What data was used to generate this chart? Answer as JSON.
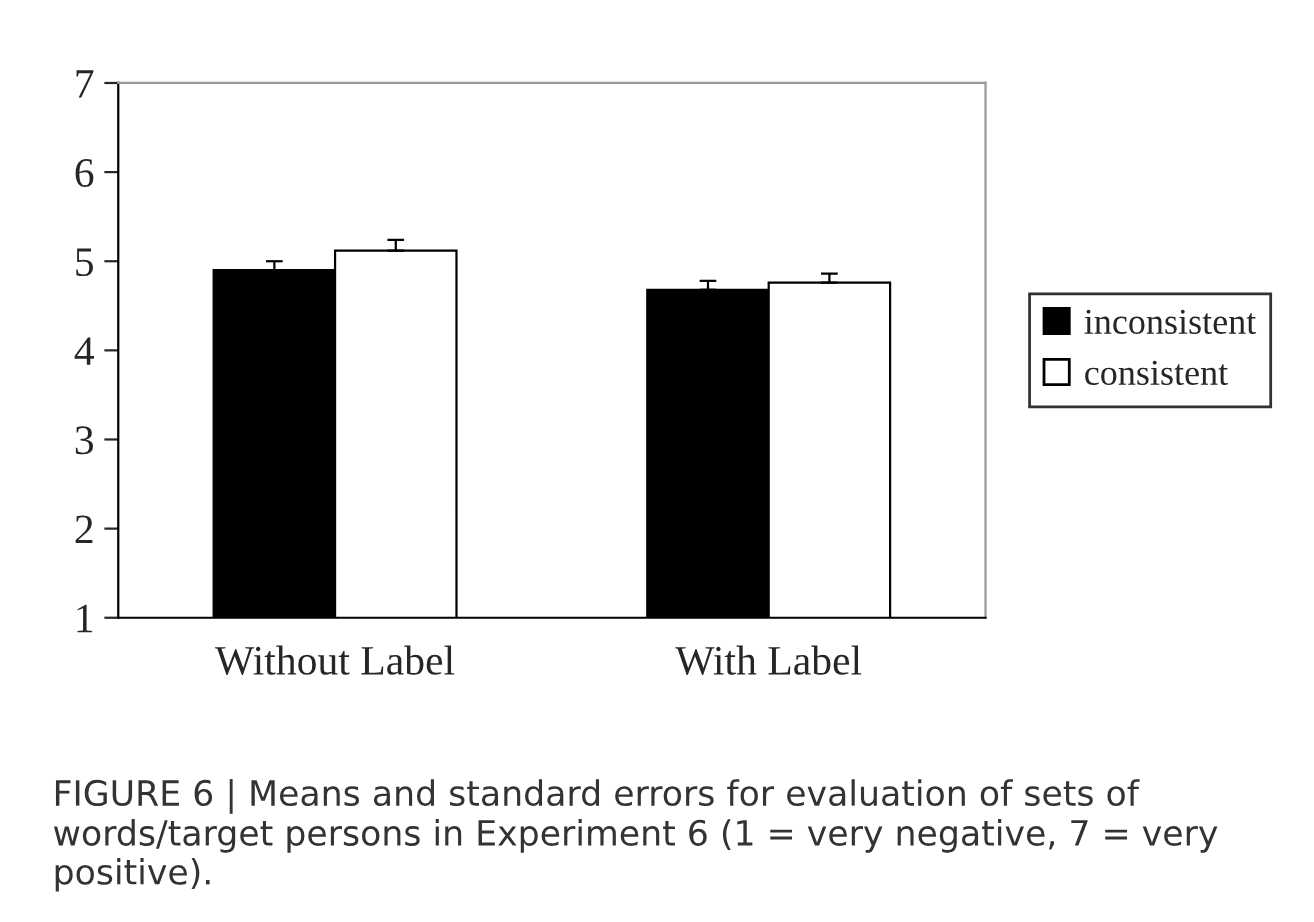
{
  "chart_data": {
    "type": "bar",
    "categories": [
      "Without Label",
      "With Label"
    ],
    "series": [
      {
        "name": "inconsistent",
        "color": "#000000",
        "values": [
          4.9,
          4.68
        ],
        "errors": [
          [
            4.9,
            5.0
          ],
          [
            4.68,
            4.78
          ]
        ]
      },
      {
        "name": "consistent",
        "color": "#ffffff",
        "values": [
          5.12,
          4.76
        ],
        "errors": [
          [
            5.12,
            5.24
          ],
          [
            4.76,
            4.86
          ]
        ]
      }
    ],
    "ylim": [
      1,
      7
    ],
    "yticks": [
      1,
      2,
      3,
      4,
      5,
      6,
      7
    ],
    "grid": false,
    "legend": "right",
    "annotations": [
      "FIGURE 6 | Means and standard errors for evaluation of sets of words/target persons in Experiment 6 (1 = very negative, 7 = very positive)."
    ]
  }
}
